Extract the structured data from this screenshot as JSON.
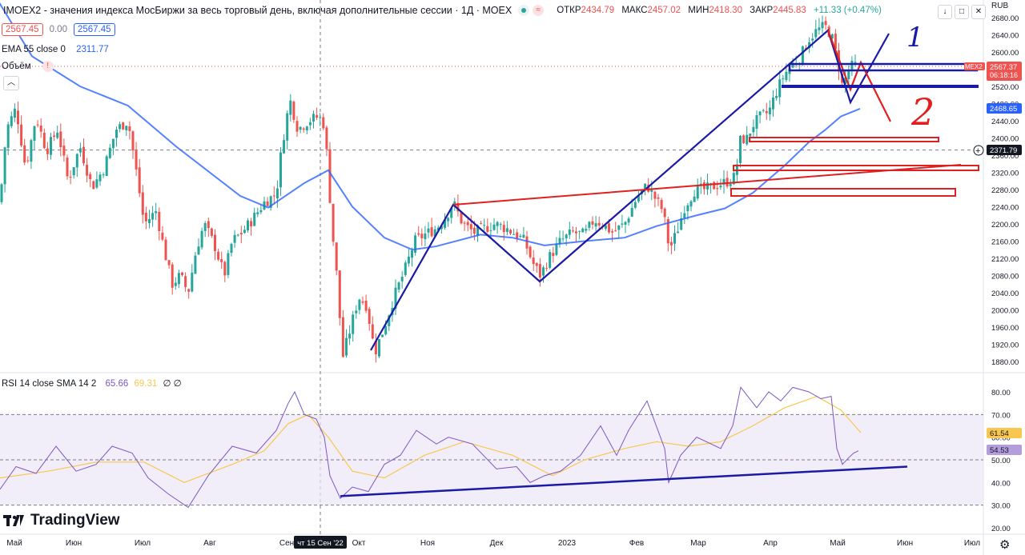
{
  "header": {
    "symbol_title": "IMOEX2 - значения индекса МосБиржи за весь торговый день, включая дополнительные сессии · 1Д · MOEX",
    "ohlc": [
      {
        "k": "ОТКР",
        "v": "2434.79"
      },
      {
        "k": "МАКС",
        "v": "2457.02"
      },
      {
        "k": "МИН",
        "v": "2418.30"
      },
      {
        "k": "ЗАКР",
        "v": "2445.83"
      }
    ],
    "change": "+11.33 (+0.47%)",
    "sell_price": "2567.45",
    "spread": "0.00",
    "buy_price": "2567.45",
    "currency": "RUB"
  },
  "indicators": {
    "ema_label": "EMA 55 close 0",
    "ema_value": "2311.77",
    "volume_label": "Объём",
    "rsi_label": "RSI 14 close SMA 14 2",
    "rsi_value": "65.66",
    "rsi_sma_value": "69.31",
    "rsi_extra": "∅ ∅"
  },
  "brand": "TradingView",
  "price_axis": [
    "2680.00",
    "2640.00",
    "2600.00",
    "2560.00",
    "2520.00",
    "2480.00",
    "2440.00",
    "2400.00",
    "2360.00",
    "2320.00",
    "2280.00",
    "2240.00",
    "2200.00",
    "2160.00",
    "2120.00",
    "2080.00",
    "2040.00",
    "2000.00",
    "1960.00",
    "1920.00",
    "1880.00"
  ],
  "rsi_axis": [
    "80.00",
    "70.00",
    "60.00",
    "50.00",
    "40.00",
    "30.00",
    "20.00"
  ],
  "time_axis": [
    "Май",
    "Июн",
    "Июл",
    "Авг",
    "Сен",
    "Окт",
    "Ноя",
    "Дек",
    "2023",
    "Фев",
    "Мар",
    "Апр",
    "Май",
    "Июн",
    "Июл"
  ],
  "badges": {
    "price_last": "2567.37",
    "countdown": "06:18:16",
    "ema_price": "2468.65",
    "crosshair_price": "2371.79",
    "rsi_sma": "61.54",
    "rsi_now": "54.53",
    "crosshair_date": "чт 15 Сен '22",
    "symbol_tag": "MEX2"
  },
  "annotations": {
    "label_1": "1",
    "label_2": "2"
  },
  "colors": {
    "up": "#26a69a",
    "down": "#ef5350",
    "ema": "#2962ff",
    "drawing_blue": "#1a1aa6",
    "drawing_red": "#e02020",
    "rsi": "#7e57c2",
    "rsi_sma": "#f9c74f"
  },
  "chart_data": {
    "type": "candlestick",
    "y_range": [
      1860,
      2690
    ],
    "rsi_range": [
      18,
      85
    ],
    "ema55": [
      [
        -6,
        2730
      ],
      [
        40,
        2590
      ],
      [
        100,
        2520
      ],
      [
        160,
        2475
      ],
      [
        220,
        2380
      ],
      [
        300,
        2265
      ],
      [
        335,
        2238
      ],
      [
        380,
        2295
      ],
      [
        410,
        2325
      ],
      [
        440,
        2240
      ],
      [
        480,
        2168
      ],
      [
        515,
        2140
      ],
      [
        545,
        2148
      ],
      [
        600,
        2175
      ],
      [
        640,
        2168
      ],
      [
        680,
        2150
      ],
      [
        730,
        2160
      ],
      [
        780,
        2168
      ],
      [
        820,
        2195
      ],
      [
        870,
        2220
      ],
      [
        905,
        2236
      ],
      [
        940,
        2272
      ],
      [
        980,
        2336
      ],
      [
        1010,
        2390
      ],
      [
        1030,
        2418
      ],
      [
        1050,
        2450
      ],
      [
        1074,
        2468
      ]
    ],
    "rsi_series": [
      [
        0,
        37
      ],
      [
        20,
        47
      ],
      [
        45,
        44
      ],
      [
        70,
        56
      ],
      [
        95,
        45
      ],
      [
        120,
        48
      ],
      [
        140,
        56
      ],
      [
        165,
        53
      ],
      [
        185,
        42
      ],
      [
        210,
        35
      ],
      [
        235,
        29
      ],
      [
        260,
        43
      ],
      [
        290,
        56
      ],
      [
        320,
        53
      ],
      [
        345,
        63
      ],
      [
        360,
        75
      ],
      [
        368,
        80
      ],
      [
        380,
        70
      ],
      [
        395,
        68
      ],
      [
        405,
        60
      ],
      [
        412,
        43
      ],
      [
        425,
        33
      ],
      [
        440,
        38
      ],
      [
        460,
        36
      ],
      [
        480,
        48
      ],
      [
        500,
        52
      ],
      [
        520,
        63
      ],
      [
        545,
        57
      ],
      [
        560,
        60
      ],
      [
        590,
        57
      ],
      [
        620,
        46
      ],
      [
        645,
        47
      ],
      [
        662,
        40
      ],
      [
        680,
        43
      ],
      [
        700,
        45
      ],
      [
        725,
        52
      ],
      [
        750,
        65
      ],
      [
        770,
        52
      ],
      [
        785,
        63
      ],
      [
        808,
        76
      ],
      [
        830,
        55
      ],
      [
        835,
        40
      ],
      [
        850,
        52
      ],
      [
        870,
        60
      ],
      [
        900,
        55
      ],
      [
        915,
        65
      ],
      [
        925,
        82
      ],
      [
        945,
        73
      ],
      [
        960,
        80
      ],
      [
        975,
        76
      ],
      [
        990,
        82
      ],
      [
        1010,
        80
      ],
      [
        1025,
        77
      ],
      [
        1038,
        78
      ],
      [
        1045,
        55
      ],
      [
        1052,
        48
      ],
      [
        1060,
        51
      ],
      [
        1066,
        53
      ],
      [
        1072,
        54
      ]
    ],
    "rsi_sma_series": [
      [
        0,
        42
      ],
      [
        60,
        45
      ],
      [
        120,
        49
      ],
      [
        180,
        49
      ],
      [
        230,
        40
      ],
      [
        290,
        48
      ],
      [
        330,
        54
      ],
      [
        360,
        66
      ],
      [
        385,
        70
      ],
      [
        410,
        60
      ],
      [
        440,
        45
      ],
      [
        480,
        42
      ],
      [
        530,
        52
      ],
      [
        580,
        58
      ],
      [
        640,
        52
      ],
      [
        690,
        43
      ],
      [
        730,
        50
      ],
      [
        780,
        55
      ],
      [
        820,
        58
      ],
      [
        860,
        56
      ],
      [
        900,
        58
      ],
      [
        940,
        65
      ],
      [
        980,
        73
      ],
      [
        1020,
        78
      ],
      [
        1050,
        72
      ],
      [
        1075,
        62
      ]
    ],
    "rsi_trend": [
      [
        425,
        34
      ],
      [
        1133,
        47
      ]
    ]
  }
}
